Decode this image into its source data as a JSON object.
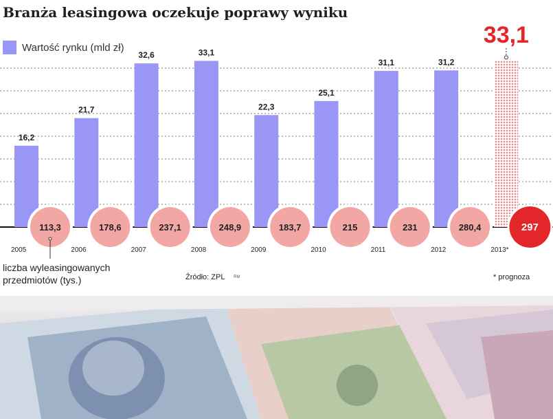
{
  "title": "Branża leasingowa oczekuje poprawy wyniku",
  "legend": {
    "label": "Wartość rynku (mld zł)"
  },
  "colors": {
    "bar": "#9a96f5",
    "forecast_bar": "#e88d8d",
    "circle": "#f3a7a5",
    "forecast_circle": "#e3262a",
    "forecast_value": "#e3262a",
    "grid": "#777777"
  },
  "note": "liczba wyleasingowanych przedmiotów (tys.)",
  "source": {
    "text": "Źródło: ZPL",
    "credit": "RM"
  },
  "footnote": "* prognoza",
  "chart_data": {
    "type": "bar",
    "categories": [
      "2005",
      "2006",
      "2007",
      "2008",
      "2009",
      "2010",
      "2011",
      "2012",
      "2013*"
    ],
    "series": [
      {
        "name": "Wartość rynku (mld zł)",
        "values": [
          16.2,
          21.7,
          32.6,
          33.1,
          22.3,
          25.1,
          31.1,
          31.2,
          33.1
        ],
        "labels": [
          "16,2",
          "21,7",
          "32,6",
          "33,1",
          "22,3",
          "25,1",
          "31,1",
          "31,2",
          "33,1"
        ]
      },
      {
        "name": "liczba wyleasingowanych przedmiotów (tys.)",
        "values": [
          113.3,
          178.6,
          237.1,
          248.9,
          183.7,
          215,
          231,
          280.4,
          297
        ],
        "labels": [
          "113,3",
          "178,6",
          "237,1",
          "248,9",
          "183,7",
          "215",
          "231",
          "280,4",
          "297"
        ]
      }
    ],
    "forecast_index": 8,
    "ylim": [
      0,
      37
    ],
    "grid": true,
    "legend": "top-left"
  },
  "photo": {
    "description_icon": "banknotes-photo"
  }
}
